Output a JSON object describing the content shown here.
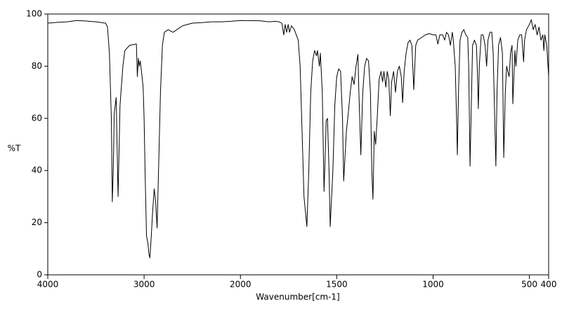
{
  "chart_data": {
    "type": "line",
    "xlabel": "Wavenumber[cm-1]",
    "ylabel": "%T",
    "xlim": [
      4000,
      400
    ],
    "ylim": [
      0,
      100
    ],
    "x_break": 2000,
    "xticks": [
      4000,
      3000,
      2000,
      1500,
      1000,
      500,
      400
    ],
    "yticks": [
      0,
      20,
      40,
      60,
      80,
      100
    ],
    "color": "#000000",
    "x": [
      4000,
      3900,
      3800,
      3700,
      3600,
      3500,
      3400,
      3380,
      3360,
      3340,
      3330,
      3320,
      3310,
      3290,
      3270,
      3250,
      3220,
      3200,
      3150,
      3080,
      3070,
      3060,
      3050,
      3040,
      3030,
      3010,
      3000,
      2990,
      2975,
      2960,
      2950,
      2940,
      2930,
      2910,
      2895,
      2880,
      2865,
      2850,
      2830,
      2810,
      2790,
      2750,
      2700,
      2600,
      2500,
      2400,
      2300,
      2200,
      2100,
      2000,
      1900,
      1850,
      1820,
      1800,
      1785,
      1775,
      1768,
      1760,
      1752,
      1745,
      1735,
      1720,
      1700,
      1690,
      1680,
      1670,
      1655,
      1645,
      1635,
      1625,
      1615,
      1605,
      1600,
      1590,
      1585,
      1575,
      1566,
      1558,
      1555,
      1548,
      1540,
      1534,
      1520,
      1510,
      1500,
      1490,
      1480,
      1470,
      1464,
      1450,
      1440,
      1430,
      1420,
      1410,
      1400,
      1390,
      1385,
      1375,
      1365,
      1355,
      1345,
      1335,
      1325,
      1318,
      1312,
      1305,
      1298,
      1290,
      1280,
      1270,
      1262,
      1255,
      1245,
      1238,
      1230,
      1222,
      1215,
      1205,
      1195,
      1185,
      1175,
      1165,
      1158,
      1150,
      1140,
      1130,
      1120,
      1110,
      1100,
      1090,
      1080,
      1060,
      1040,
      1020,
      1000,
      985,
      975,
      965,
      950,
      940,
      930,
      920,
      910,
      900,
      895,
      885,
      878,
      874,
      868,
      860,
      850,
      840,
      830,
      820,
      815,
      808,
      800,
      795,
      785,
      775,
      770,
      765,
      760,
      750,
      740,
      730,
      722,
      715,
      705,
      695,
      688,
      680,
      674,
      668,
      660,
      650,
      640,
      633,
      625,
      618,
      612,
      605,
      598,
      590,
      586,
      575,
      570,
      560,
      550,
      540,
      530,
      525,
      515,
      500,
      490,
      480,
      470,
      460,
      450,
      440,
      430,
      425,
      420,
      410,
      400
    ],
    "values": [
      96.5,
      96.8,
      97,
      97.5,
      97.3,
      97,
      96.5,
      95,
      85,
      60,
      28,
      40,
      62,
      68,
      30,
      65,
      80,
      86,
      88,
      88.5,
      76,
      83,
      80,
      82,
      79,
      72,
      60,
      40,
      15,
      12,
      8,
      6.5,
      12,
      25,
      33,
      28,
      18,
      40,
      70,
      88,
      93,
      94,
      93,
      95.5,
      96.5,
      96.7,
      97,
      97,
      97.2,
      97.5,
      97.4,
      97,
      97.2,
      97,
      96.5,
      92,
      96,
      93,
      96,
      93,
      95.5,
      94,
      90,
      80,
      55,
      30,
      18.5,
      40,
      70,
      82,
      86,
      84,
      86,
      80,
      85,
      70,
      32,
      50,
      59,
      60,
      40,
      18.5,
      40,
      65,
      76,
      79,
      78,
      60,
      36,
      55,
      62,
      70,
      76,
      73,
      80,
      84.5,
      70,
      46,
      70,
      80,
      83,
      82,
      70,
      40,
      29,
      55,
      50,
      60,
      75,
      78,
      74,
      78,
      72,
      78,
      75,
      61,
      74,
      78,
      70,
      78,
      80,
      76,
      66,
      78,
      85,
      89,
      90,
      88,
      71,
      88,
      90,
      91,
      92,
      92.5,
      92,
      92,
      88.5,
      92,
      92,
      90,
      93,
      92,
      88,
      93,
      90,
      80,
      60,
      46,
      70,
      90,
      93,
      94,
      92,
      91,
      80,
      41.7,
      70,
      88,
      90,
      88,
      78,
      63.7,
      80,
      92,
      92,
      88,
      80,
      90,
      93,
      93,
      85,
      60,
      41.7,
      70,
      88,
      91,
      85,
      45,
      70,
      80,
      78,
      76,
      85,
      88,
      65.6,
      86,
      80,
      90,
      92,
      92,
      81.7,
      90,
      94,
      96,
      97.8,
      94,
      96,
      92,
      95,
      90,
      92,
      86,
      92,
      88,
      76
    ]
  }
}
